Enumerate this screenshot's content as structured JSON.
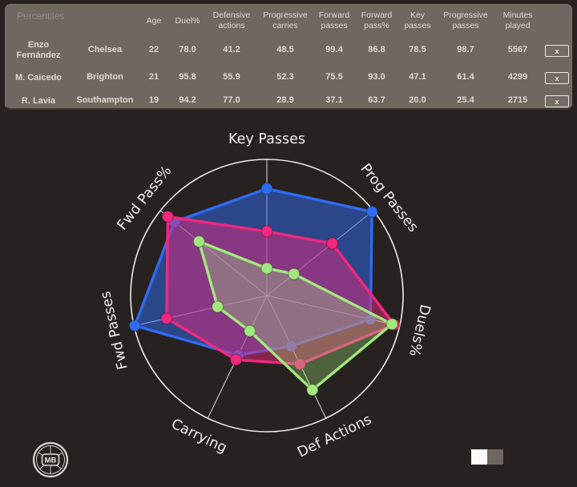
{
  "table": {
    "corner_label": "Percentiles",
    "columns": [
      "Age",
      "Duel%",
      "Defensive actions",
      "Progressive carries",
      "Forward passes",
      "Forward pass%",
      "Key passes",
      "Progressive passes",
      "Minutes played"
    ],
    "remove_label": "x",
    "rows": [
      {
        "name": "Enzo Fernández",
        "team": "Chelsea",
        "color": "#2e6df2",
        "values": [
          "22",
          "78.0",
          "41.2",
          "48.5",
          "99.4",
          "86.8",
          "78.5",
          "98.7",
          "5567"
        ]
      },
      {
        "name": "M. Caicedo",
        "team": "Brighton",
        "color": "#f02d84",
        "values": [
          "21",
          "95.8",
          "55.9",
          "52.3",
          "75.5",
          "93.0",
          "47.1",
          "61.4",
          "4299"
        ]
      },
      {
        "name": "R. Lavia",
        "team": "Southampton",
        "color": "#b5f29b",
        "values": [
          "19",
          "94.2",
          "77.0",
          "28.9",
          "37.1",
          "63.7",
          "20.0",
          "25.4",
          "2715"
        ]
      }
    ]
  },
  "chart_data": {
    "type": "radar",
    "categories": [
      "Key Passes",
      "Prog Passes",
      "Duels%",
      "Def Actions",
      "Carrying",
      "Fwd Passes",
      "Fwd Pass%"
    ],
    "series": [
      {
        "name": "Enzo Fernández",
        "color": "#2f6cf2",
        "values": [
          78.5,
          98.7,
          78.0,
          41.2,
          48.5,
          99.4,
          86.8
        ]
      },
      {
        "name": "M. Caicedo",
        "color": "#f2277e",
        "values": [
          47.1,
          61.4,
          95.8,
          55.9,
          52.3,
          75.5,
          93.0
        ]
      },
      {
        "name": "R. Lavia",
        "color": "#a3e87e",
        "values": [
          20.0,
          25.4,
          94.2,
          77.0,
          28.9,
          37.1,
          63.7
        ]
      }
    ],
    "rmin": 0,
    "rmax": 100,
    "grid": "outer-circle-and-spokes",
    "legend": "none",
    "title": ""
  },
  "footer": {
    "logo_text": "MB"
  },
  "colors": {
    "page_bg": "#272220",
    "card_bg": "#6f6860",
    "grid_line": "#efebe5",
    "axis_label": "#f2efe9",
    "header_text": "#ddd9d2",
    "muted_text": "#958d82"
  }
}
